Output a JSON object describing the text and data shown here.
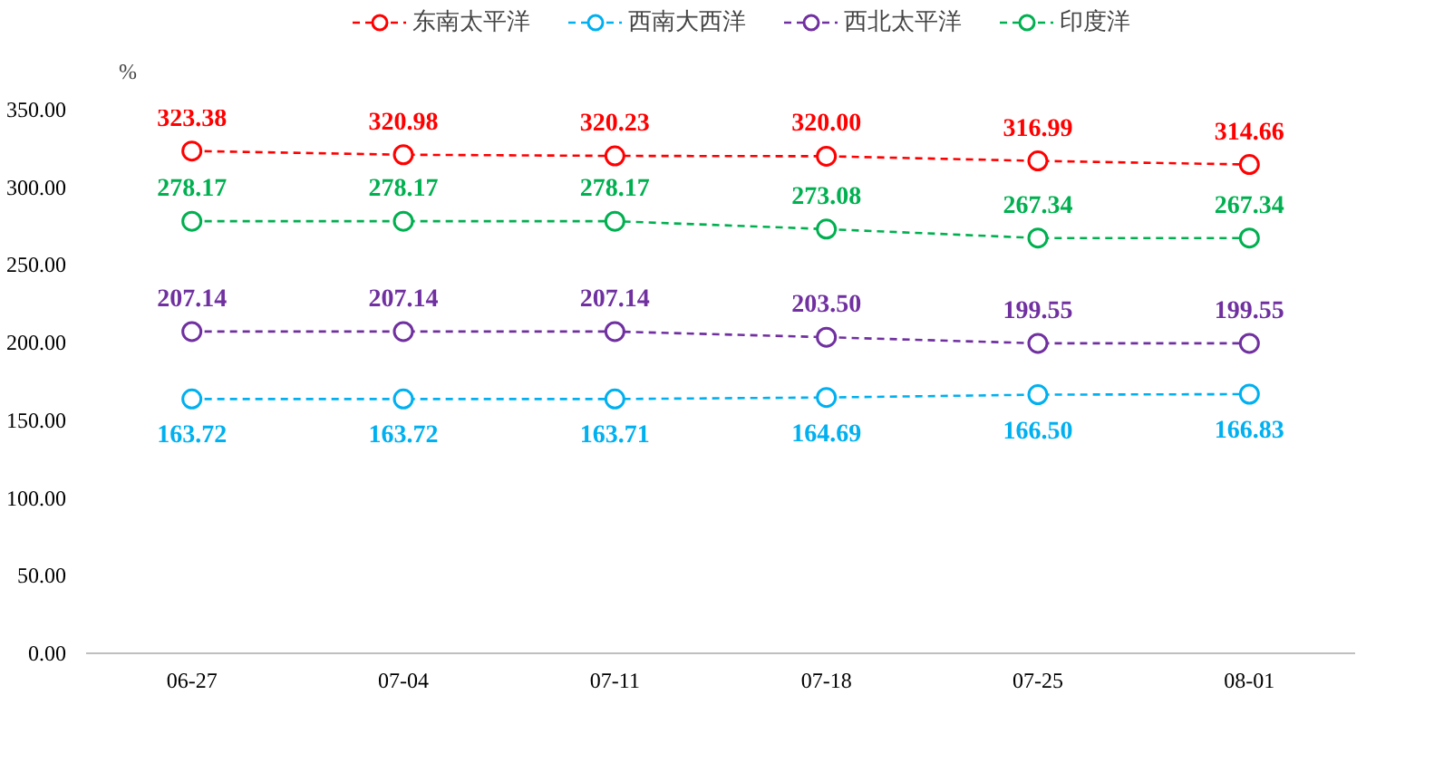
{
  "chart_data": {
    "type": "line",
    "ylabel": "%",
    "categories": [
      "06-27",
      "07-04",
      "07-11",
      "07-18",
      "07-25",
      "08-01"
    ],
    "series": [
      {
        "name": "东南太平洋",
        "color": "#ff0000",
        "values": [
          323.38,
          320.98,
          320.23,
          320.0,
          316.99,
          314.66
        ],
        "value_labels": [
          "323.38",
          "320.98",
          "320.23",
          "320.00",
          "316.99",
          "314.66"
        ]
      },
      {
        "name": "西南大西洋",
        "color": "#00b0f0",
        "values": [
          163.72,
          163.72,
          163.71,
          164.69,
          166.5,
          166.83
        ],
        "value_labels": [
          "163.72",
          "163.72",
          "163.71",
          "164.69",
          "166.50",
          "166.83"
        ]
      },
      {
        "name": "西北太平洋",
        "color": "#7030a0",
        "values": [
          207.14,
          207.14,
          207.14,
          203.5,
          199.55,
          199.55
        ],
        "value_labels": [
          "207.14",
          "207.14",
          "207.14",
          "203.50",
          "199.55",
          "199.55"
        ]
      },
      {
        "name": "印度洋",
        "color": "#00b050",
        "values": [
          278.17,
          278.17,
          278.17,
          273.08,
          267.34,
          267.34
        ],
        "value_labels": [
          "278.17",
          "278.17",
          "278.17",
          "273.08",
          "267.34",
          "267.34"
        ]
      }
    ],
    "ylim": [
      0,
      350
    ],
    "yticks": [
      {
        "value": 0,
        "label": "0.00"
      },
      {
        "value": 50,
        "label": "50.00"
      },
      {
        "value": 100,
        "label": "100.00"
      },
      {
        "value": 150,
        "label": "150.00"
      },
      {
        "value": 200,
        "label": "200.00"
      },
      {
        "value": 250,
        "label": "250.00"
      },
      {
        "value": 300,
        "label": "300.00"
      },
      {
        "value": 350,
        "label": "350.00"
      }
    ],
    "grid": false,
    "legend": "top",
    "marker": "circle",
    "line_style": "dashed"
  }
}
